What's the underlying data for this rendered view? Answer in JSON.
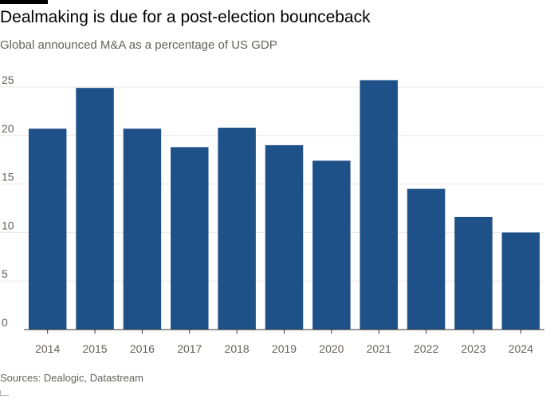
{
  "header": {
    "title": "Dealmaking is due for a post-election bounceback",
    "subtitle": "Global announced M&A as a percentage of US GDP"
  },
  "footer": {
    "source": "Sources: Dealogic, Datastream"
  },
  "colors": {
    "bar": "#1f5189",
    "grid": "#e9e6e3",
    "axis": "#33302e",
    "text": "#66605c"
  },
  "chart_data": {
    "type": "bar",
    "title": "Dealmaking is due for a post-election bounceback",
    "subtitle": "Global announced M&A as a percentage of US GDP",
    "xlabel": "",
    "ylabel": "",
    "categories": [
      "2014",
      "2015",
      "2016",
      "2017",
      "2018",
      "2019",
      "2020",
      "2021",
      "2022",
      "2023",
      "2024"
    ],
    "values": [
      20.7,
      24.9,
      20.7,
      18.8,
      20.8,
      19.0,
      17.4,
      25.7,
      14.5,
      11.6,
      10.0
    ],
    "ylim": [
      0,
      25.9
    ],
    "yticks": [
      "0",
      "5",
      "10",
      "15",
      "20",
      "25"
    ],
    "grid": true,
    "legend": "none"
  }
}
